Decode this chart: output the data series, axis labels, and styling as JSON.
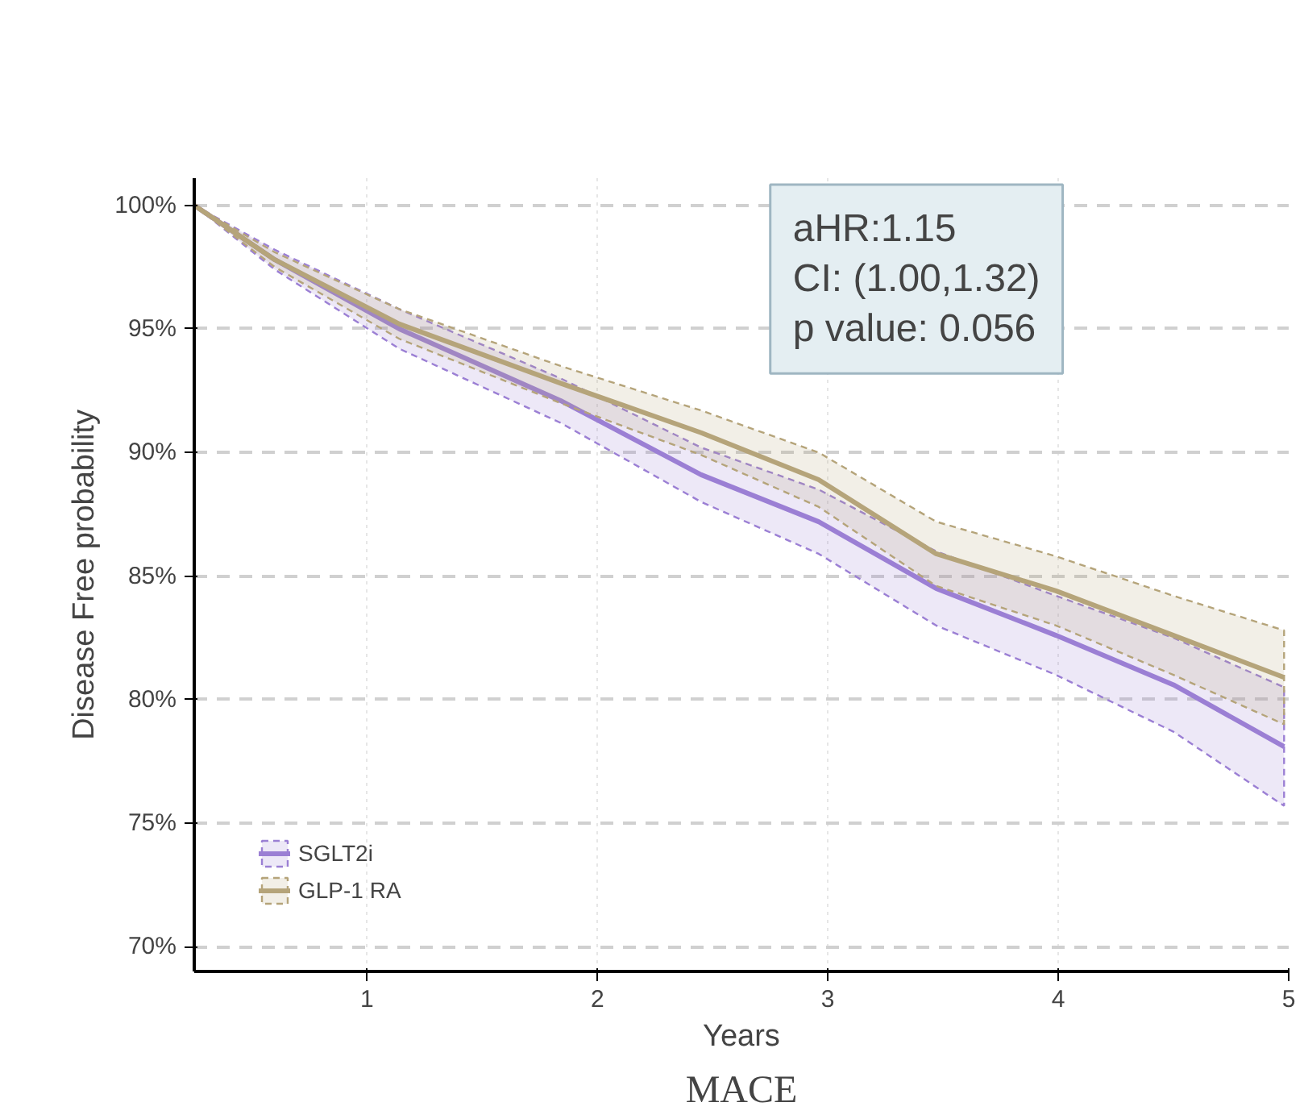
{
  "chart_data": {
    "type": "line",
    "ylabel": "Disease Free probability",
    "xlabel": "Years",
    "annotations": [
      "aHR:1.15\nCI: (1.00,1.32)\np value: 0.056",
      "MACE"
    ],
    "x": [
      0.25,
      0.6,
      1.14,
      1.84,
      2.45,
      2.96,
      3.47,
      3.99,
      4.5,
      4.98
    ],
    "series": [
      {
        "name": "SGLT2i",
        "color": "#9b7fd4",
        "values": [
          100,
          97.8,
          95.0,
          92.1,
          89.1,
          87.2,
          84.5,
          82.6,
          80.6,
          78.1
        ],
        "lower": [
          100,
          97.4,
          94.2,
          91.2,
          88.0,
          85.9,
          83.0,
          81.0,
          78.7,
          75.7
        ],
        "upper": [
          100,
          98.2,
          95.8,
          93.0,
          90.2,
          88.5,
          86.0,
          84.2,
          82.5,
          80.5
        ]
      },
      {
        "name": "GLP-1 RA",
        "color": "#b5a47a",
        "values": [
          100,
          97.8,
          95.2,
          92.8,
          90.8,
          88.9,
          85.9,
          84.4,
          82.6,
          80.9
        ],
        "lower": [
          100,
          97.5,
          94.6,
          92.0,
          89.9,
          87.8,
          84.6,
          83.0,
          81.0,
          79.0
        ],
        "upper": [
          100,
          98.1,
          95.8,
          93.5,
          91.7,
          90.0,
          87.2,
          85.8,
          84.2,
          82.8
        ]
      }
    ],
    "xlim": [
      0.25,
      5.0
    ],
    "ylim": [
      69.0,
      101.1
    ],
    "xticks": [
      1,
      2,
      3,
      4,
      5
    ],
    "yticks": [
      {
        "value": 70,
        "label": "70%"
      },
      {
        "value": 75,
        "label": "75%"
      },
      {
        "value": 80,
        "label": "80%"
      },
      {
        "value": 85,
        "label": "85%"
      },
      {
        "value": 90,
        "label": "90%"
      },
      {
        "value": 95,
        "label": "95%"
      },
      {
        "value": 100,
        "label": "100%"
      }
    ],
    "grid": true,
    "legend": "bottom left",
    "line_style": "solid"
  }
}
